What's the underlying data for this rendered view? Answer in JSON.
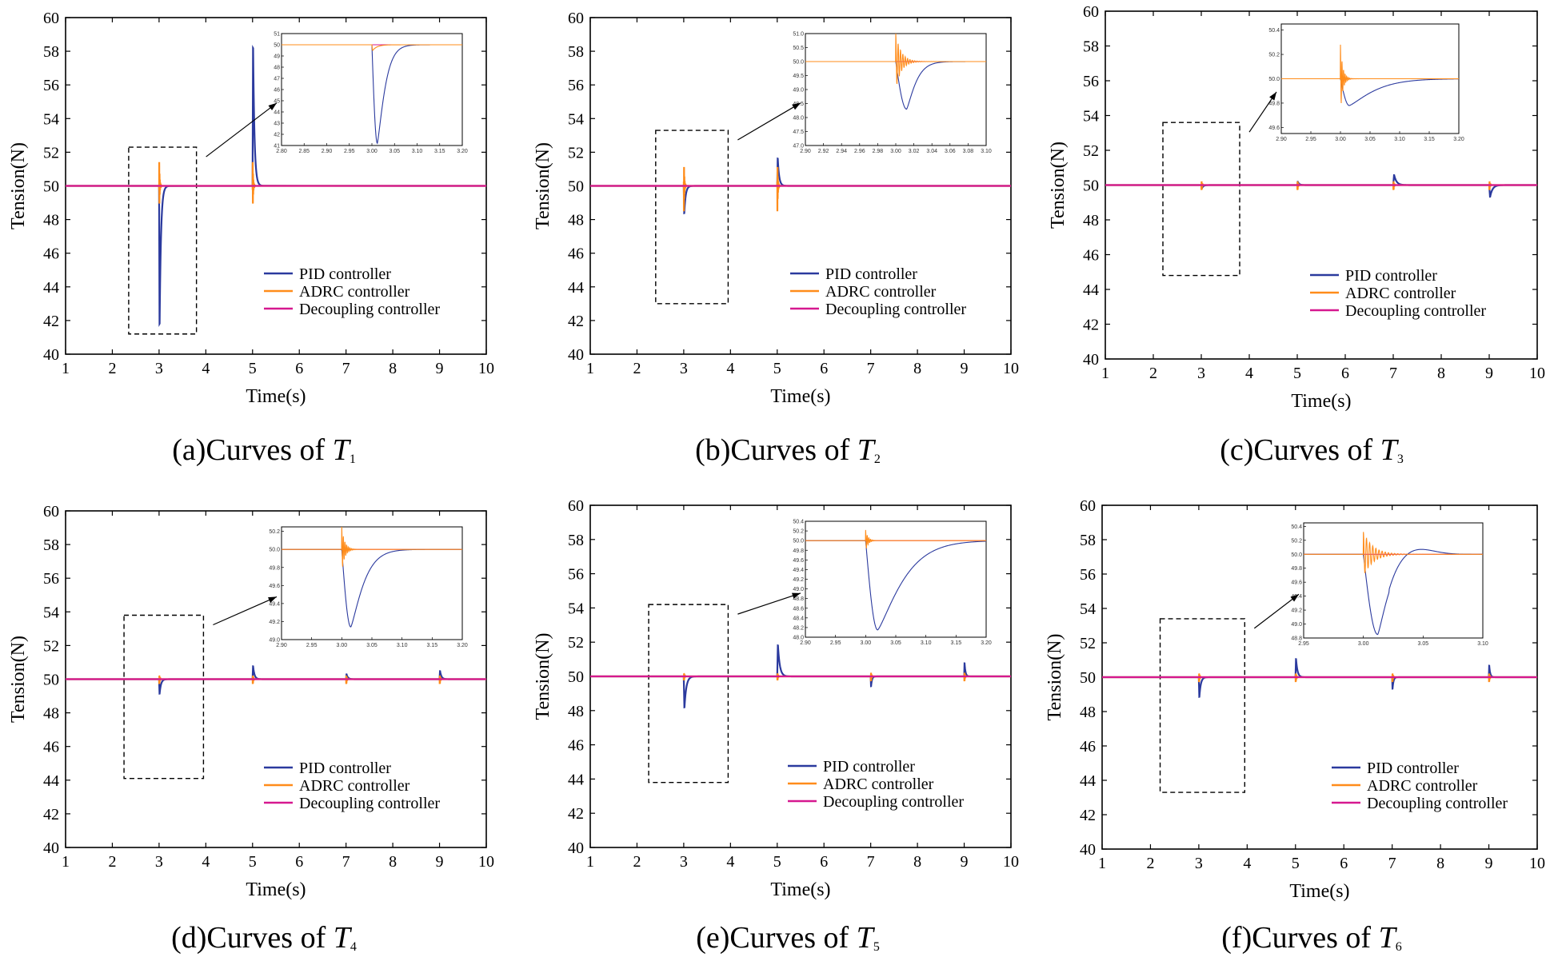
{
  "colors": {
    "pid": "#2b3a9e",
    "adrc": "#ff8c1a",
    "decoupling": "#d6188f",
    "axis": "#000000"
  },
  "legend": {
    "pid": "PID controller",
    "adrc": "ADRC controller",
    "decoupling": "Decoupling controller"
  },
  "chart_data": [
    {
      "type": "line",
      "caption_prefix": "(a)Curves of ",
      "caption_var": "T",
      "caption_sub": "1",
      "xlabel": "Time(s)",
      "ylabel": "Tension(N)",
      "xlim": [
        1,
        10
      ],
      "ylim": [
        40,
        60
      ],
      "xticks": [
        1,
        2,
        3,
        4,
        5,
        6,
        7,
        8,
        9,
        10
      ],
      "yticks": [
        40,
        42,
        44,
        46,
        48,
        50,
        52,
        54,
        56,
        58,
        60
      ],
      "dashed_box": {
        "x": [
          2.35,
          3.8
        ],
        "y": [
          41.2,
          52.3
        ]
      },
      "series": [
        {
          "name": "PID controller",
          "key": "pid",
          "events": [
            {
              "t": 3,
              "amp": -8.6,
              "w": 0.03,
              "osc": 0
            },
            {
              "t": 5,
              "amp": 8.6,
              "w": 0.03,
              "osc": 0
            }
          ]
        },
        {
          "name": "ADRC controller",
          "key": "adrc",
          "events": [
            {
              "t": 3,
              "amp": -1.5,
              "w": 0.01,
              "osc": 0.3
            },
            {
              "t": 5,
              "amp": -1.5,
              "w": 0.01,
              "osc": 0.3
            }
          ]
        },
        {
          "name": "Decoupling controller",
          "key": "decoupling",
          "events": []
        }
      ],
      "inset": {
        "xlim": [
          2.8,
          3.2
        ],
        "ylim": [
          41,
          51
        ],
        "xticks": [
          2.8,
          2.85,
          2.9,
          2.95,
          3.0,
          3.05,
          3.1,
          3.15,
          3.2
        ],
        "yticks": [
          41,
          42,
          43,
          44,
          45,
          46,
          47,
          48,
          49,
          50,
          51
        ],
        "tick_decimals_x": 2,
        "tick_decimals_y": 0,
        "pid": {
          "t": 3.0,
          "amp": -8.8,
          "tmin": 3.012,
          "tau": 0.02
        },
        "adrc": {
          "t": 3.0,
          "amp": -0.6,
          "tau": 0.01,
          "osc": 0
        }
      }
    },
    {
      "type": "line",
      "caption_prefix": "(b)Curves of ",
      "caption_var": "T",
      "caption_sub": "2",
      "xlabel": "Time(s)",
      "ylabel": "Tension(N)",
      "xlim": [
        1,
        10
      ],
      "ylim": [
        40,
        60
      ],
      "xticks": [
        1,
        2,
        3,
        4,
        5,
        6,
        7,
        8,
        9,
        10
      ],
      "yticks": [
        40,
        42,
        44,
        46,
        48,
        50,
        52,
        54,
        56,
        58,
        60
      ],
      "dashed_box": {
        "x": [
          2.4,
          3.95
        ],
        "y": [
          43.0,
          53.3
        ]
      },
      "series": [
        {
          "name": "PID controller",
          "key": "pid",
          "events": [
            {
              "t": 3,
              "amp": -1.7,
              "w": 0.03,
              "osc": 0
            },
            {
              "t": 5,
              "amp": 1.7,
              "w": 0.03,
              "osc": 0
            }
          ]
        },
        {
          "name": "ADRC controller",
          "key": "adrc",
          "events": [
            {
              "t": 3,
              "amp": 1.6,
              "w": 0.01,
              "osc": 1
            },
            {
              "t": 5,
              "amp": 1.6,
              "w": 0.01,
              "osc": 1
            }
          ]
        },
        {
          "name": "Decoupling controller",
          "key": "decoupling",
          "events": []
        }
      ],
      "inset": {
        "xlim": [
          2.9,
          3.1
        ],
        "ylim": [
          47.0,
          51.0
        ],
        "xticks": [
          2.9,
          2.92,
          2.94,
          2.96,
          2.98,
          3.0,
          3.02,
          3.04,
          3.06,
          3.08,
          3.1
        ],
        "yticks": [
          47.0,
          47.5,
          48.0,
          48.5,
          49.0,
          49.5,
          50.0,
          50.5,
          51.0
        ],
        "tick_decimals_x": 2,
        "tick_decimals_y": 1,
        "pid": {
          "t": 3.0,
          "amp": -1.7,
          "tmin": 3.012,
          "tau": 0.012
        },
        "adrc": {
          "t": 3.0,
          "amp": 1.0,
          "tau": 0.006,
          "osc": 1
        }
      }
    },
    {
      "type": "line",
      "caption_prefix": "(c)Curves of ",
      "caption_var": "T",
      "caption_sub": "3",
      "xlabel": "Time(s)",
      "ylabel": "Tension(N)",
      "xlim": [
        1,
        10
      ],
      "ylim": [
        40,
        60
      ],
      "xticks": [
        1,
        2,
        3,
        4,
        5,
        6,
        7,
        8,
        9,
        10
      ],
      "yticks": [
        40,
        42,
        44,
        46,
        48,
        50,
        52,
        54,
        56,
        58,
        60
      ],
      "dashed_box": {
        "x": [
          2.2,
          3.8
        ],
        "y": [
          44.8,
          53.6
        ]
      },
      "series": [
        {
          "name": "PID controller",
          "key": "pid",
          "events": [
            {
              "t": 3,
              "amp": -0.2,
              "w": 0.03,
              "osc": 0
            },
            {
              "t": 5,
              "amp": 0.2,
              "w": 0.03,
              "osc": 0
            },
            {
              "t": 7,
              "amp": 0.6,
              "w": 0.05,
              "osc": 0
            },
            {
              "t": 9,
              "amp": -0.7,
              "w": 0.05,
              "osc": 0
            }
          ]
        },
        {
          "name": "ADRC controller",
          "key": "adrc",
          "events": [
            {
              "t": 3,
              "amp": 0.3,
              "w": 0.01,
              "osc": 1
            },
            {
              "t": 5,
              "amp": 0.3,
              "w": 0.01,
              "osc": 1
            },
            {
              "t": 7,
              "amp": 0.3,
              "w": 0.01,
              "osc": 1
            },
            {
              "t": 9,
              "amp": 0.3,
              "w": 0.01,
              "osc": 1
            }
          ]
        },
        {
          "name": "Decoupling controller",
          "key": "decoupling",
          "events": []
        }
      ],
      "inset": {
        "xlim": [
          2.9,
          3.2
        ],
        "ylim": [
          49.55,
          50.45
        ],
        "xticks": [
          2.9,
          2.95,
          3.0,
          3.05,
          3.1,
          3.15,
          3.2
        ],
        "yticks": [
          49.6,
          49.8,
          50.0,
          50.2,
          50.4
        ],
        "tick_decimals_x": 2,
        "tick_decimals_y": 1,
        "pid": {
          "t": 3.0,
          "amp": -0.22,
          "tmin": 3.015,
          "tau": 0.05
        },
        "adrc": {
          "t": 3.0,
          "amp": 0.28,
          "tau": 0.004,
          "osc": 1
        }
      }
    },
    {
      "type": "line",
      "caption_prefix": "(d)Curves of ",
      "caption_var": "T",
      "caption_sub": "4",
      "xlabel": "Time(s)",
      "ylabel": "Tension(N)",
      "xlim": [
        1,
        10
      ],
      "ylim": [
        40,
        60
      ],
      "xticks": [
        1,
        2,
        3,
        4,
        5,
        6,
        7,
        8,
        9,
        10
      ],
      "yticks": [
        40,
        42,
        44,
        46,
        48,
        50,
        52,
        54,
        56,
        58,
        60
      ],
      "dashed_box": {
        "x": [
          2.25,
          3.95
        ],
        "y": [
          44.1,
          53.8
        ]
      },
      "series": [
        {
          "name": "PID controller",
          "key": "pid",
          "events": [
            {
              "t": 3,
              "amp": -0.9,
              "w": 0.03,
              "osc": 0
            },
            {
              "t": 5,
              "amp": 0.8,
              "w": 0.03,
              "osc": 0
            },
            {
              "t": 7,
              "amp": 0.3,
              "w": 0.03,
              "osc": 0
            },
            {
              "t": 9,
              "amp": 0.5,
              "w": 0.03,
              "osc": 0
            }
          ]
        },
        {
          "name": "ADRC controller",
          "key": "adrc",
          "events": [
            {
              "t": 3,
              "amp": 0.3,
              "w": 0.01,
              "osc": 1
            },
            {
              "t": 5,
              "amp": 0.3,
              "w": 0.01,
              "osc": 1
            },
            {
              "t": 7,
              "amp": 0.3,
              "w": 0.01,
              "osc": 1
            },
            {
              "t": 9,
              "amp": 0.3,
              "w": 0.01,
              "osc": 1
            }
          ]
        },
        {
          "name": "Decoupling controller",
          "key": "decoupling",
          "events": []
        }
      ],
      "inset": {
        "xlim": [
          2.9,
          3.2
        ],
        "ylim": [
          49.0,
          50.25
        ],
        "xticks": [
          2.9,
          2.95,
          3.0,
          3.05,
          3.1,
          3.15,
          3.2
        ],
        "yticks": [
          49.0,
          49.2,
          49.4,
          49.6,
          49.8,
          50.0,
          50.2
        ],
        "tick_decimals_x": 2,
        "tick_decimals_y": 1,
        "pid": {
          "t": 3.0,
          "amp": -0.86,
          "tmin": 3.015,
          "tau": 0.025
        },
        "adrc": {
          "t": 3.0,
          "amp": 0.25,
          "tau": 0.005,
          "osc": 1
        }
      }
    },
    {
      "type": "line",
      "caption_prefix": "(e)Curves of ",
      "caption_var": "T",
      "caption_sub": "5",
      "xlabel": "Time(s)",
      "ylabel": "Tension(N)",
      "xlim": [
        1,
        10
      ],
      "ylim": [
        40,
        60
      ],
      "xticks": [
        1,
        2,
        3,
        4,
        5,
        6,
        7,
        8,
        9,
        10
      ],
      "yticks": [
        40,
        42,
        44,
        46,
        48,
        50,
        52,
        54,
        56,
        58,
        60
      ],
      "dashed_box": {
        "x": [
          2.25,
          3.95
        ],
        "y": [
          43.8,
          54.2
        ]
      },
      "series": [
        {
          "name": "PID controller",
          "key": "pid",
          "events": [
            {
              "t": 3,
              "amp": -1.9,
              "w": 0.04,
              "osc": 0
            },
            {
              "t": 5,
              "amp": 1.9,
              "w": 0.04,
              "osc": 0
            },
            {
              "t": 7,
              "amp": -0.6,
              "w": 0.02,
              "osc": 0
            },
            {
              "t": 9,
              "amp": 0.8,
              "w": 0.02,
              "osc": 0
            }
          ]
        },
        {
          "name": "ADRC controller",
          "key": "adrc",
          "events": [
            {
              "t": 3,
              "amp": 0.25,
              "w": 0.01,
              "osc": 1
            },
            {
              "t": 5,
              "amp": 0.25,
              "w": 0.01,
              "osc": 1
            },
            {
              "t": 7,
              "amp": 0.3,
              "w": 0.01,
              "osc": 1
            },
            {
              "t": 9,
              "amp": 0.3,
              "w": 0.01,
              "osc": 1
            }
          ]
        },
        {
          "name": "Decoupling controller",
          "key": "decoupling",
          "events": []
        }
      ],
      "inset": {
        "xlim": [
          2.9,
          3.2
        ],
        "ylim": [
          48.0,
          50.4
        ],
        "xticks": [
          2.9,
          2.95,
          3.0,
          3.05,
          3.1,
          3.15,
          3.2
        ],
        "yticks": [
          48.0,
          48.2,
          48.4,
          48.6,
          48.8,
          49.0,
          49.2,
          49.4,
          49.6,
          49.8,
          50.0,
          50.2,
          50.4
        ],
        "tick_decimals_x": 2,
        "tick_decimals_y": 1,
        "pid": {
          "t": 3.0,
          "amp": -1.85,
          "tmin": 3.02,
          "tau": 0.05
        },
        "adrc": {
          "t": 3.0,
          "amp": 0.22,
          "tau": 0.004,
          "osc": 1
        }
      }
    },
    {
      "type": "line",
      "caption_prefix": "(f)Curves of ",
      "caption_var": "T",
      "caption_sub": "6",
      "xlabel": "Time(s)",
      "ylabel": "Tension(N)",
      "xlim": [
        1,
        10
      ],
      "ylim": [
        40,
        60
      ],
      "xticks": [
        1,
        2,
        3,
        4,
        5,
        6,
        7,
        8,
        9,
        10
      ],
      "yticks": [
        40,
        42,
        44,
        46,
        48,
        50,
        52,
        54,
        56,
        58,
        60
      ],
      "dashed_box": {
        "x": [
          2.2,
          3.95
        ],
        "y": [
          43.3,
          53.4
        ]
      },
      "series": [
        {
          "name": "PID controller",
          "key": "pid",
          "events": [
            {
              "t": 3,
              "amp": -1.2,
              "w": 0.03,
              "osc": 0
            },
            {
              "t": 5,
              "amp": 1.1,
              "w": 0.03,
              "osc": 0
            },
            {
              "t": 7,
              "amp": -0.7,
              "w": 0.02,
              "osc": 0
            },
            {
              "t": 9,
              "amp": 0.7,
              "w": 0.02,
              "osc": 0
            }
          ]
        },
        {
          "name": "ADRC controller",
          "key": "adrc",
          "events": [
            {
              "t": 3,
              "amp": 0.3,
              "w": 0.01,
              "osc": 1
            },
            {
              "t": 5,
              "amp": 0.3,
              "w": 0.01,
              "osc": 1
            },
            {
              "t": 7,
              "amp": 0.3,
              "w": 0.01,
              "osc": 1
            },
            {
              "t": 9,
              "amp": 0.3,
              "w": 0.01,
              "osc": 1
            }
          ]
        },
        {
          "name": "Decoupling controller",
          "key": "decoupling",
          "events": []
        }
      ],
      "inset": {
        "xlim": [
          2.95,
          3.1
        ],
        "ylim": [
          48.8,
          50.45
        ],
        "xticks": [
          2.95,
          3.0,
          3.05,
          3.1
        ],
        "yticks": [
          48.8,
          49.0,
          49.2,
          49.4,
          49.6,
          49.8,
          50.0,
          50.2,
          50.4
        ],
        "tick_decimals_x": 2,
        "tick_decimals_y": 1,
        "pid": {
          "t": 3.0,
          "amp": -1.15,
          "tmin": 3.012,
          "tau": 0.012,
          "overshoot": 0.1
        },
        "adrc": {
          "t": 3.0,
          "amp": 0.32,
          "tau": 0.008,
          "osc": 1
        }
      }
    }
  ]
}
